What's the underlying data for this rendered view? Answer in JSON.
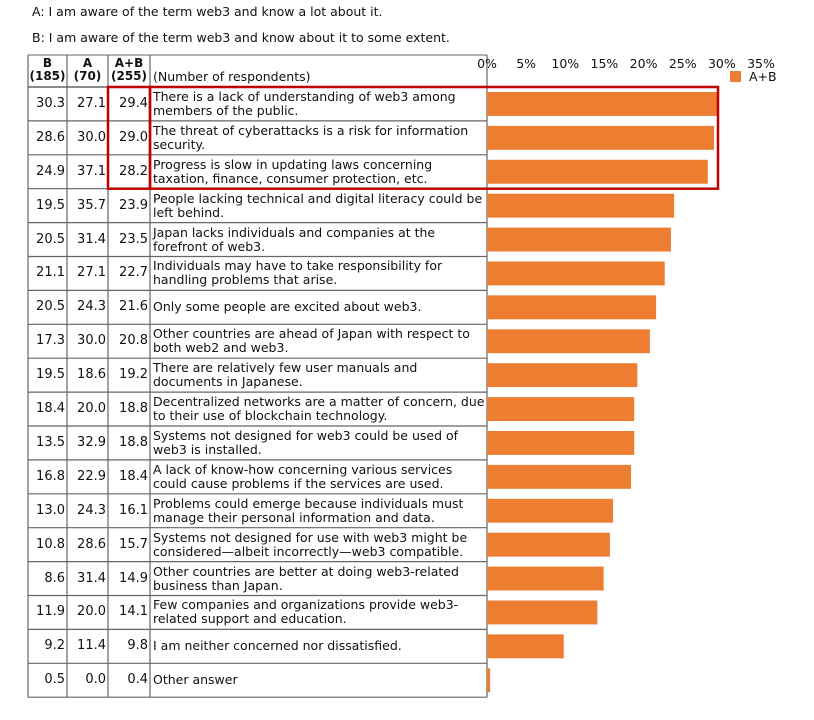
{
  "chart_data": {
    "type": "bar",
    "orientation": "horizontal",
    "notes": [
      "A: I am aware of the term web3 and know a lot about it.",
      "B: I am aware of the term web3 and know about it to some extent."
    ],
    "respondents_note": "(Number of respondents)",
    "categories": [
      "There is a lack of understanding of web3 among members of the public.",
      "The threat of cyberattacks is a risk for information security.",
      "Progress is slow in updating laws concerning taxation, finance, consumer protection, etc.",
      "People lacking technical and digital literacy could be left behind.",
      "Japan lacks individuals and companies at the forefront of web3.",
      "Individuals may have to take responsibility for handling problems that arise.",
      "Only some people are excited about web3.",
      "Other countries are ahead of Japan with respect to both web2 and web3.",
      "There are relatively few user manuals and documents in Japanese.",
      "Decentralized networks are a matter of concern, due to their use of blockchain technology.",
      "Systems not designed for web3 could be used of web3 is installed.",
      "A lack of know-how concerning various services could cause problems if the services are used.",
      "Problems could emerge because individuals must manage their personal information and data.",
      "Systems not designed for use with web3 might be considered—albeit incorrectly—web3 compatible.",
      "Other countries are better at doing web3-related business than Japan.",
      "Few companies and organizations provide web3-related support and education.",
      "I am neither concerned nor dissatisfied.",
      "Other answer"
    ],
    "table_columns": [
      {
        "name": "B",
        "n": "(185)",
        "values": [
          30.3,
          28.6,
          24.9,
          19.5,
          20.5,
          21.1,
          20.5,
          17.3,
          19.5,
          18.4,
          13.5,
          16.8,
          13.0,
          10.8,
          8.6,
          11.9,
          9.2,
          0.5
        ],
        "value_labels": [
          "30.3",
          "28.6",
          "24.9",
          "19.5",
          "20.5",
          "21.1",
          "20.5",
          "17.3",
          "19.5",
          "18.4",
          "13.5",
          "16.8",
          "13.0",
          "10.8",
          "8.6",
          "11.9",
          "9.2",
          "0.5"
        ]
      },
      {
        "name": "A",
        "n": "(70)",
        "values": [
          27.1,
          30.0,
          37.1,
          35.7,
          31.4,
          27.1,
          24.3,
          30.0,
          18.6,
          20.0,
          32.9,
          22.9,
          24.3,
          28.6,
          31.4,
          20.0,
          11.4,
          0.0
        ],
        "value_labels": [
          "27.1",
          "30.0",
          "37.1",
          "35.7",
          "31.4",
          "27.1",
          "24.3",
          "30.0",
          "18.6",
          "20.0",
          "32.9",
          "22.9",
          "24.3",
          "28.6",
          "31.4",
          "20.0",
          "11.4",
          "0.0"
        ]
      }
    ],
    "series": [
      {
        "name": "A+B",
        "n": "(255)",
        "color": "#ed7d31",
        "values": [
          29.4,
          29.0,
          28.2,
          23.9,
          23.5,
          22.7,
          21.6,
          20.8,
          19.2,
          18.8,
          18.8,
          18.4,
          16.1,
          15.7,
          14.9,
          14.1,
          9.8,
          0.4
        ],
        "value_labels": [
          "29.4",
          "29.0",
          "28.2",
          "23.9",
          "23.5",
          "22.7",
          "21.6",
          "20.8",
          "19.2",
          "18.8",
          "18.8",
          "18.4",
          "16.1",
          "15.7",
          "14.9",
          "14.1",
          "9.8",
          "0.4"
        ]
      }
    ],
    "xlim": [
      0,
      35
    ],
    "xticks": [
      {
        "value": 0,
        "label": "0%"
      },
      {
        "value": 5,
        "label": "5%"
      },
      {
        "value": 10,
        "label": "10%"
      },
      {
        "value": 15,
        "label": "15%"
      },
      {
        "value": 20,
        "label": "20%"
      },
      {
        "value": 25,
        "label": "25%"
      },
      {
        "value": 30,
        "label": "30%"
      },
      {
        "value": 35,
        "label": "35%"
      }
    ],
    "legend_position": "top-right",
    "grid": false
  }
}
